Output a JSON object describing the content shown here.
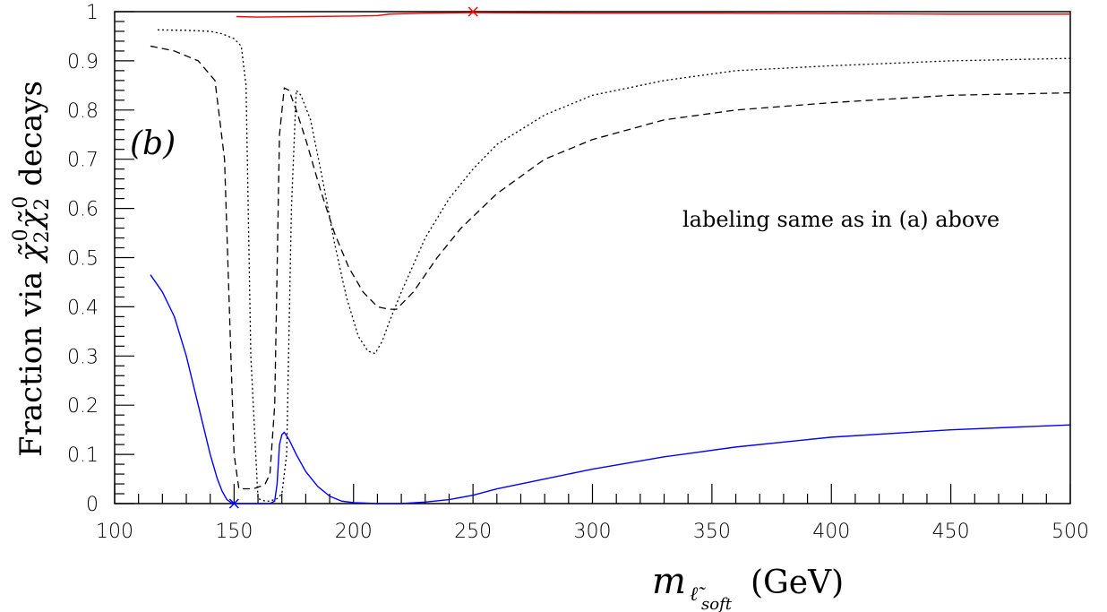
{
  "chart_data": {
    "type": "line",
    "panel_label": "(b)",
    "annotation": "labeling same as in (a) above",
    "xlabel": {
      "main": "m",
      "sub_base": "ℓ̃",
      "sub_script": "soft",
      "unit": "(GeV)"
    },
    "ylabel": {
      "prefix": "Fraction via ",
      "chi": "χ̃",
      "sup": "0",
      "sub": "2",
      "suffix": " decays"
    },
    "xlim": [
      100,
      500
    ],
    "ylim": [
      0,
      1
    ],
    "xticks": [
      100,
      150,
      200,
      250,
      300,
      350,
      400,
      450,
      500
    ],
    "yticks": [
      0,
      0.1,
      0.2,
      0.3,
      0.4,
      0.5,
      0.6,
      0.7,
      0.8,
      0.9,
      1
    ],
    "xtick_labels": [
      "100",
      "150",
      "200",
      "250",
      "300",
      "350",
      "400",
      "450",
      "500"
    ],
    "ytick_labels": [
      "0",
      "0.1",
      "0.2",
      "0.3",
      "0.4",
      "0.5",
      "0.6",
      "0.7",
      "0.8",
      "0.9",
      "1"
    ],
    "series": [
      {
        "style": "solid",
        "color": "#ff0000",
        "x": [
          151,
          160,
          180,
          200,
          210,
          215,
          230,
          250,
          300,
          350,
          400,
          450,
          500
        ],
        "y": [
          0.99,
          0.989,
          0.99,
          0.991,
          0.992,
          0.995,
          0.997,
          0.998,
          0.997,
          0.997,
          0.996,
          0.995,
          0.995
        ],
        "markers": [
          {
            "x": 250,
            "y": 1.0
          }
        ]
      },
      {
        "style": "dotted",
        "color": "#000000",
        "x": [
          118,
          130,
          140,
          145,
          150,
          153,
          155,
          157,
          160,
          163,
          165,
          168,
          170,
          172,
          174,
          176,
          178,
          182,
          187,
          192,
          197,
          202,
          206,
          209,
          212,
          215,
          220,
          230,
          240,
          250,
          260,
          280,
          300,
          330,
          360,
          400,
          450,
          500
        ],
        "y": [
          0.963,
          0.962,
          0.96,
          0.955,
          0.945,
          0.93,
          0.85,
          0.3,
          0.01,
          0.005,
          0.005,
          0.01,
          0.02,
          0.1,
          0.6,
          0.84,
          0.83,
          0.78,
          0.66,
          0.53,
          0.42,
          0.34,
          0.31,
          0.305,
          0.33,
          0.37,
          0.43,
          0.54,
          0.62,
          0.68,
          0.73,
          0.79,
          0.83,
          0.86,
          0.88,
          0.89,
          0.9,
          0.905
        ],
        "markers": []
      },
      {
        "style": "dashed",
        "color": "#000000",
        "x": [
          115,
          125,
          135,
          142,
          146,
          148,
          150,
          152,
          155,
          158,
          161,
          163,
          165,
          167,
          169,
          171,
          173,
          176,
          180,
          186,
          192,
          198,
          204,
          210,
          215,
          218,
          225,
          235,
          245,
          260,
          280,
          300,
          330,
          360,
          400,
          450,
          500
        ],
        "y": [
          0.93,
          0.92,
          0.9,
          0.86,
          0.7,
          0.4,
          0.1,
          0.03,
          0.03,
          0.03,
          0.035,
          0.04,
          0.06,
          0.2,
          0.75,
          0.845,
          0.84,
          0.8,
          0.74,
          0.64,
          0.55,
          0.48,
          0.43,
          0.4,
          0.395,
          0.395,
          0.43,
          0.5,
          0.56,
          0.63,
          0.7,
          0.74,
          0.78,
          0.8,
          0.815,
          0.83,
          0.835
        ],
        "markers": []
      },
      {
        "style": "solid",
        "color": "#0000ff",
        "x": [
          115,
          120,
          125,
          130,
          135,
          140,
          143,
          145,
          147,
          149,
          150,
          152,
          155,
          158,
          162,
          165,
          167,
          168,
          169,
          170,
          171,
          173,
          176,
          180,
          185,
          190,
          195,
          200,
          210,
          220,
          230,
          240,
          250,
          260,
          280,
          300,
          330,
          360,
          400,
          450,
          500
        ],
        "y": [
          0.465,
          0.43,
          0.38,
          0.3,
          0.2,
          0.1,
          0.05,
          0.025,
          0.008,
          0.001,
          0.0,
          0.0,
          0.0,
          0.0,
          0.0,
          0.0,
          0.005,
          0.04,
          0.12,
          0.14,
          0.145,
          0.13,
          0.1,
          0.065,
          0.035,
          0.015,
          0.005,
          0.002,
          0.0,
          0.0,
          0.003,
          0.008,
          0.017,
          0.03,
          0.05,
          0.07,
          0.095,
          0.115,
          0.135,
          0.15,
          0.16
        ],
        "markers": [
          {
            "x": 150,
            "y": 0.0
          }
        ]
      }
    ]
  }
}
